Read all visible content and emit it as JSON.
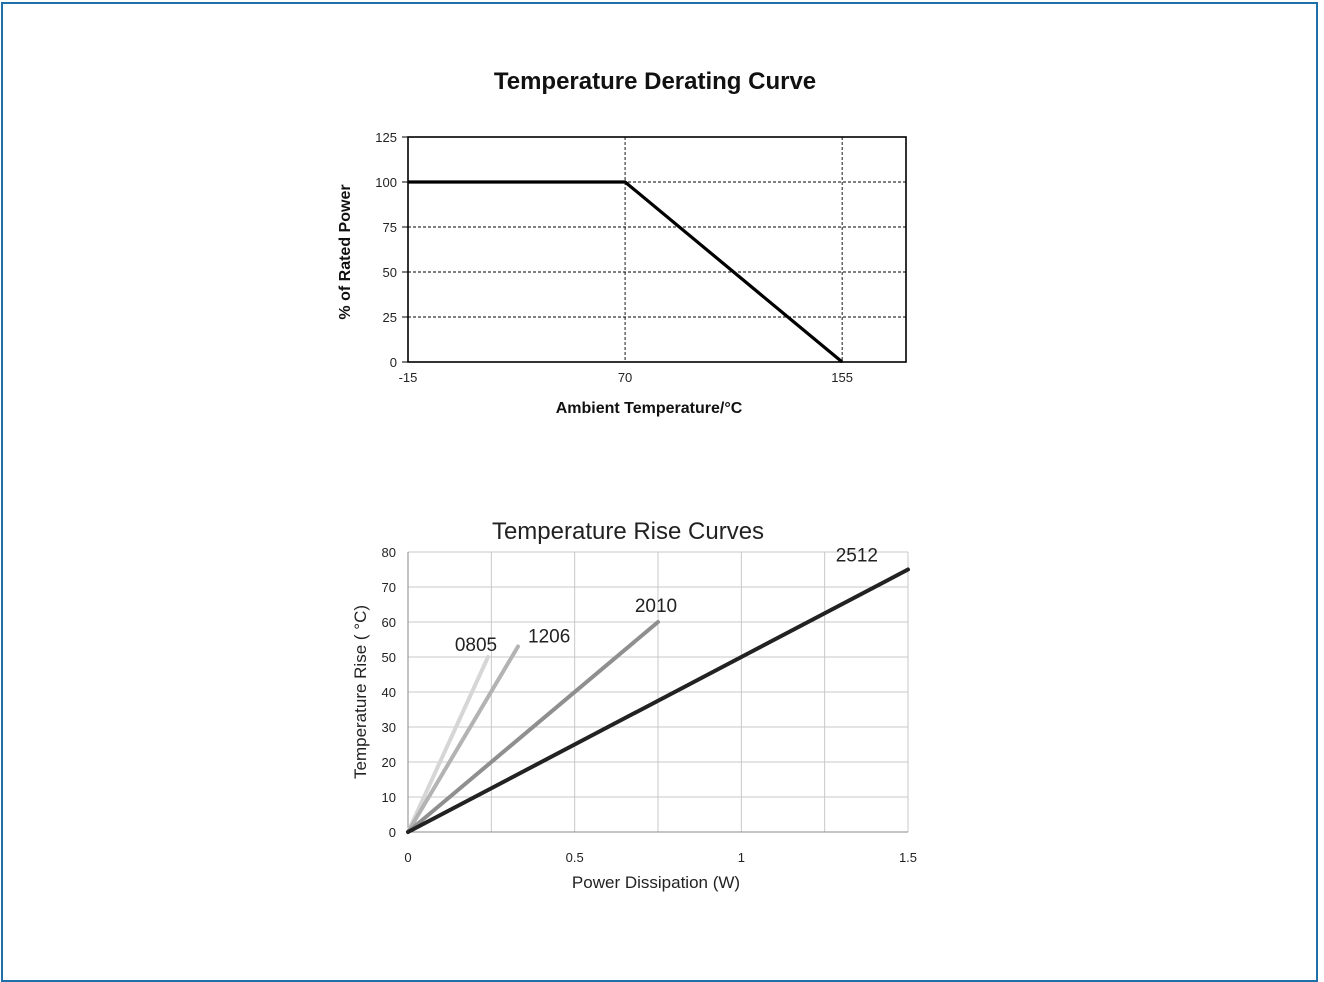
{
  "chart_data": [
    {
      "type": "line",
      "title": "Temperature Derating Curve",
      "xlabel": "Ambient Temperature/°C",
      "ylabel": "% of Rated Power",
      "xlim": [
        -15,
        180
      ],
      "ylim": [
        0,
        125
      ],
      "x_ticks": [
        -15,
        70,
        155
      ],
      "y_ticks": [
        0,
        25,
        50,
        75,
        100,
        125
      ],
      "grid": true,
      "series": [
        {
          "points": [
            [
              -15,
              100
            ],
            [
              70,
              100
            ],
            [
              155,
              0
            ]
          ]
        }
      ]
    },
    {
      "type": "line",
      "title": "Temperature Rise Curves",
      "xlabel": "Power Dissipation (W)",
      "ylabel": "Temperature Rise ( °C)",
      "xlim": [
        0,
        1.5
      ],
      "ylim": [
        0,
        80
      ],
      "x_ticks": [
        0,
        0.5,
        1,
        1.5
      ],
      "y_ticks": [
        0,
        10,
        20,
        30,
        40,
        50,
        60,
        70,
        80
      ],
      "grid": true,
      "series": [
        {
          "name": "0805",
          "color": "#d6d6d6",
          "points": [
            [
              0,
              0
            ],
            [
              0.24,
              50
            ]
          ]
        },
        {
          "name": "1206",
          "color": "#b3b3b3",
          "points": [
            [
              0,
              0
            ],
            [
              0.33,
              53
            ]
          ]
        },
        {
          "name": "2010",
          "color": "#8f8f8f",
          "points": [
            [
              0,
              0
            ],
            [
              0.75,
              60
            ]
          ]
        },
        {
          "name": "2512",
          "color": "#222222",
          "points": [
            [
              0,
              0
            ],
            [
              1.5,
              75
            ]
          ]
        }
      ]
    }
  ]
}
